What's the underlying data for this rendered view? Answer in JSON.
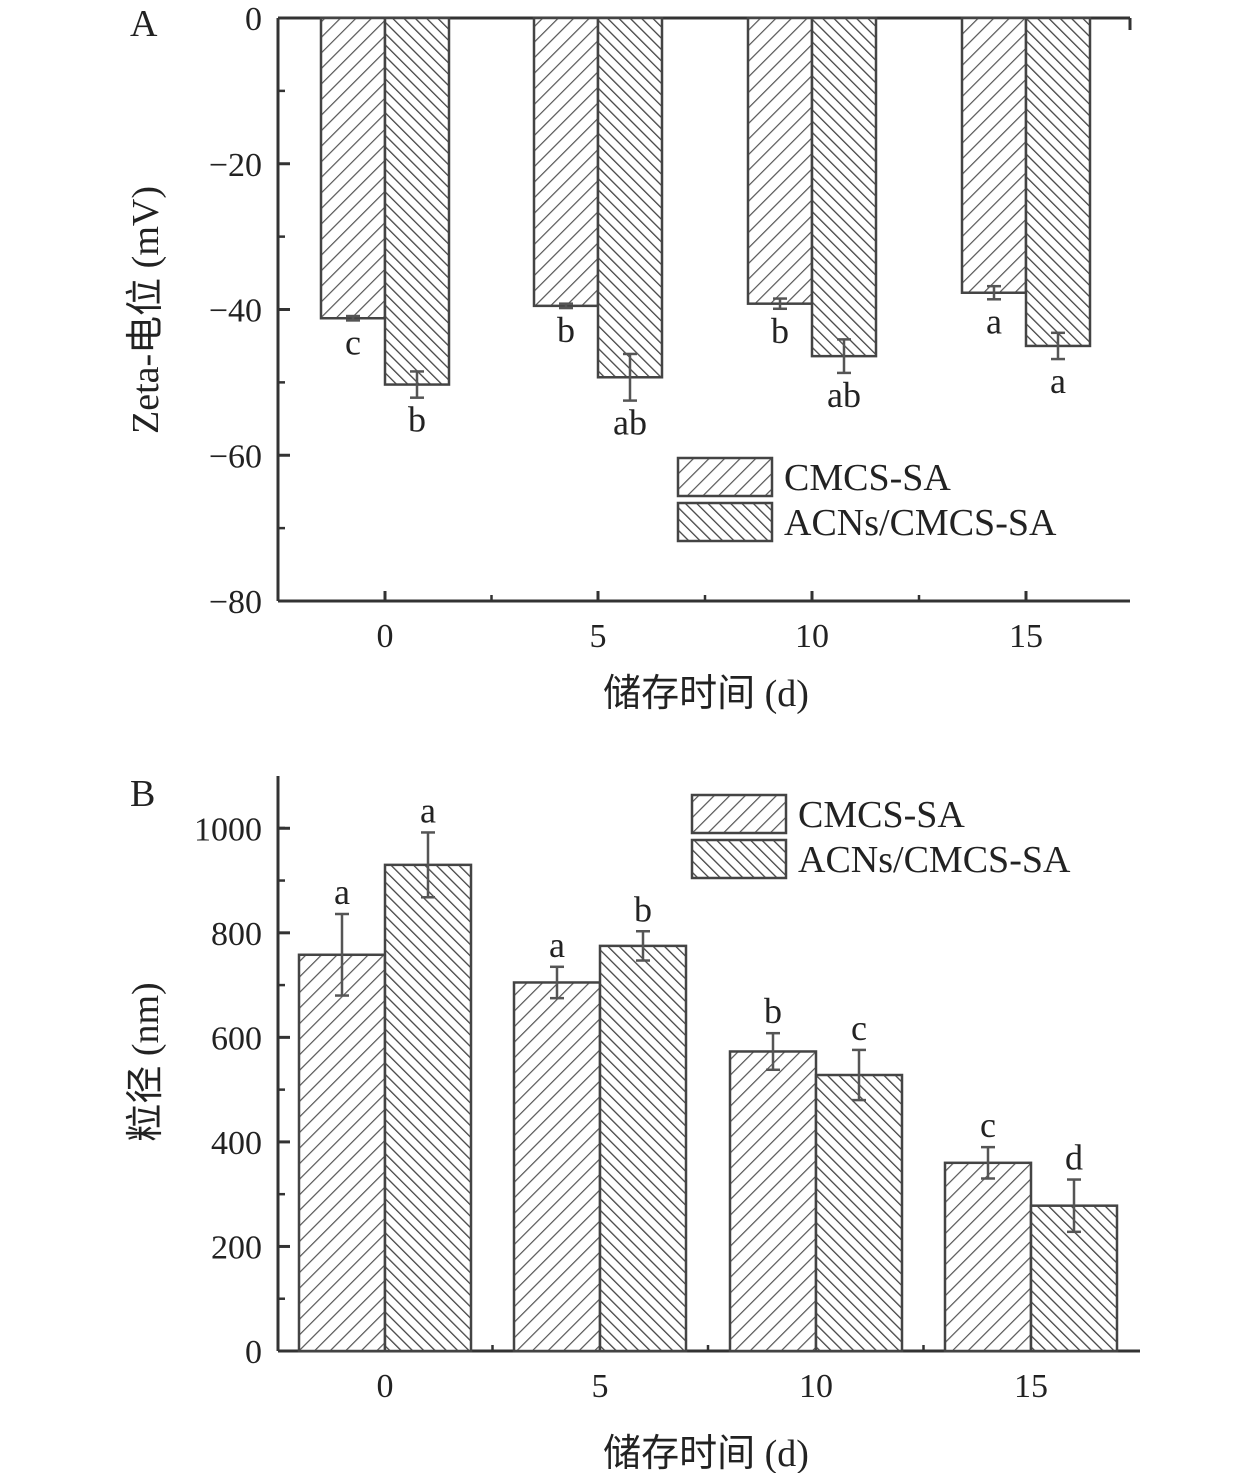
{
  "chart_data": [
    {
      "panel": "A",
      "type": "bar",
      "ylabel": "Zeta-电位 (mV)",
      "xlabel": "储存时间 (d)",
      "categories": [
        "0",
        "5",
        "10",
        "15"
      ],
      "ylim": [
        -80,
        0
      ],
      "yticks": [
        "0",
        "−20",
        "−40",
        "−60",
        "−80"
      ],
      "legend_position": "bottom-right",
      "series": [
        {
          "name": "CMCS-SA",
          "values": [
            -41.2,
            -39.5,
            -39.2,
            -37.7
          ],
          "errors": [
            0.3,
            0.3,
            0.7,
            0.9
          ],
          "labels": [
            "c",
            "b",
            "b",
            "a"
          ]
        },
        {
          "name": "ACNs/CMCS-SA",
          "values": [
            -50.3,
            -49.3,
            -46.4,
            -45.0
          ],
          "errors": [
            1.8,
            3.2,
            2.3,
            1.8
          ],
          "labels": [
            "b",
            "ab",
            "ab",
            "a"
          ]
        }
      ]
    },
    {
      "panel": "B",
      "type": "bar",
      "ylabel": "粒径 (nm)",
      "xlabel": "储存时间 (d)",
      "categories": [
        "0",
        "5",
        "10",
        "15"
      ],
      "ylim": [
        0,
        1100
      ],
      "yticks": [
        "0",
        "200",
        "400",
        "600",
        "800",
        "1000"
      ],
      "legend_position": "top-right",
      "series": [
        {
          "name": "CMCS-SA",
          "values": [
            758,
            705,
            573,
            360
          ],
          "errors": [
            78,
            30,
            35,
            30
          ],
          "labels": [
            "a",
            "a",
            "b",
            "c"
          ]
        },
        {
          "name": "ACNs/CMCS-SA",
          "values": [
            930,
            775,
            528,
            278
          ],
          "errors": [
            62,
            28,
            48,
            50
          ],
          "labels": [
            "a",
            "b",
            "c",
            "d"
          ]
        }
      ]
    }
  ]
}
